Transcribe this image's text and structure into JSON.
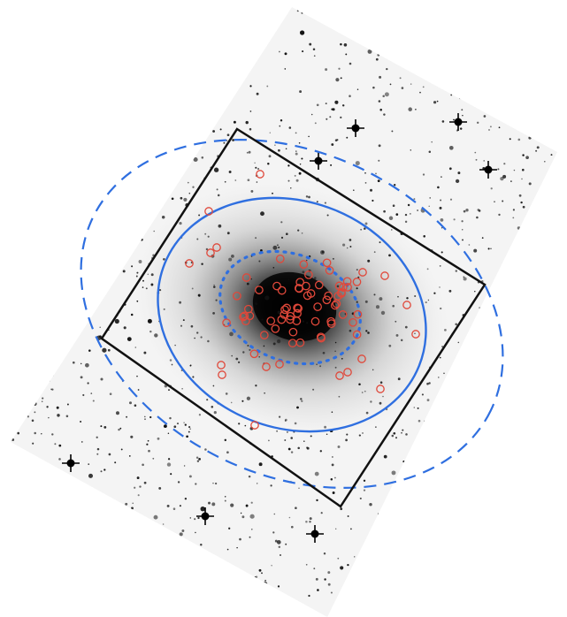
{
  "figure": {
    "background_color": "#ffffff",
    "field_color": "#ebebeb",
    "star_color": "#111111",
    "outer_box_color": "#111111",
    "solid_ellipse_color": "#2f6fe0",
    "dashed_ellipse_color": "#2f6fe0",
    "dotted_ellipse_color": "#2f6fe0",
    "marker_color": "#e0483a",
    "marker_count": 80
  }
}
